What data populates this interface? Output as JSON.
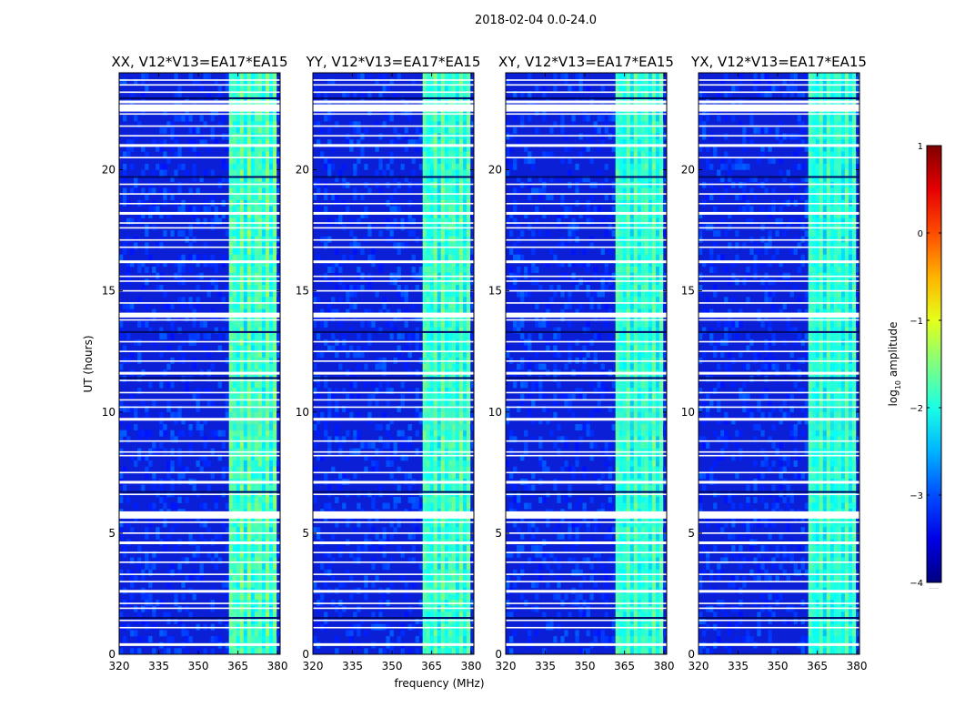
{
  "chart_data": {
    "type": "heatmap",
    "title": "2018-02-04 0.0-24.0",
    "xlabel": "frequency (MHz)",
    "ylabel": "UT (hours)",
    "xlim": [
      320,
      381
    ],
    "ylim": [
      0,
      24
    ],
    "xticks": [
      "320",
      "335",
      "350",
      "365",
      "380"
    ],
    "yticks": [
      "0",
      "5",
      "10",
      "15",
      "20"
    ],
    "panels": [
      {
        "title": "XX, V12*V13=EA17*EA15",
        "band_intensity": 0.55
      },
      {
        "title": "YY, V12*V13=EA17*EA15",
        "band_intensity": 0.5
      },
      {
        "title": "XY, V12*V13=EA17*EA15",
        "band_intensity": 0.45
      },
      {
        "title": "YX, V12*V13=EA17*EA15",
        "band_intensity": 0.4
      }
    ],
    "flagged_rows_hours": [
      0.4,
      1.1,
      1.4,
      1.9,
      2.1,
      2.6,
      3.0,
      3.3,
      3.8,
      4.2,
      4.6,
      5.0,
      5.45,
      5.85,
      6.6,
      7.1,
      7.5,
      8.2,
      8.35,
      8.8,
      9.7,
      10.2,
      10.5,
      10.8,
      11.3,
      11.6,
      12.1,
      12.5,
      12.9,
      13.8,
      14.0,
      14.5,
      15.0,
      15.4,
      15.6,
      16.2,
      16.8,
      17.1,
      17.6,
      17.8,
      18.2,
      18.6,
      19.0,
      19.4,
      20.5,
      21.0,
      21.4,
      21.8,
      22.3,
      22.6,
      22.8,
      23.2,
      23.5,
      23.7
    ],
    "bright_band_mhz": [
      362,
      379
    ],
    "colorbar": {
      "label": "log10 amplitude",
      "label_main": "log",
      "label_sub": "10",
      "label_rest": " amplitude",
      "range": [
        -4,
        1
      ],
      "ticks": [
        "1",
        "0",
        "−1",
        "−2",
        "−3",
        "−4"
      ],
      "colormap": "jet",
      "footnote": "......"
    }
  }
}
